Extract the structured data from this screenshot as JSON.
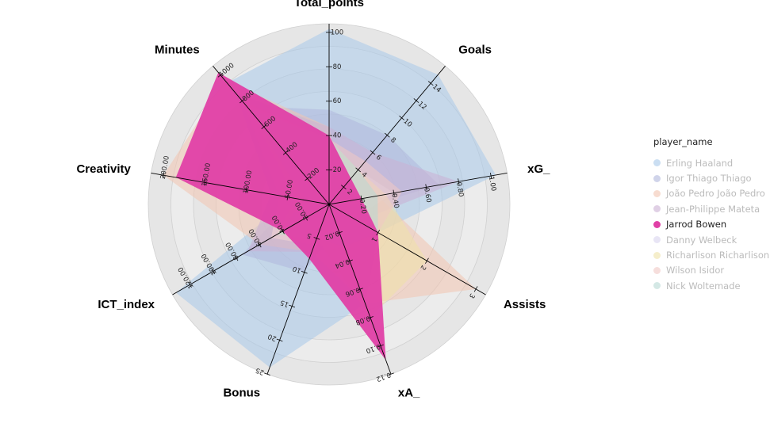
{
  "chart_data": {
    "type": "radar",
    "axes": [
      {
        "name": "Total_points",
        "max": 105,
        "ticks": [
          20,
          40,
          60,
          80,
          100
        ]
      },
      {
        "name": "Goals",
        "max": 16,
        "ticks": [
          2,
          4,
          6,
          8,
          10,
          12,
          14
        ]
      },
      {
        "name": "xG_",
        "max": 1.1,
        "ticks": [
          0.2,
          0.4,
          0.6,
          0.8,
          1.0
        ],
        "decimals": 2
      },
      {
        "name": "Assists",
        "max": 3.2,
        "ticks": [
          1,
          2,
          3
        ]
      },
      {
        "name": "xA_",
        "max": 0.12,
        "ticks": [
          0.02,
          0.04,
          0.06,
          0.08,
          0.1,
          0.12
        ],
        "decimals": 2
      },
      {
        "name": "Bonus",
        "max": 25,
        "ticks": [
          5,
          10,
          15,
          20,
          25
        ]
      },
      {
        "name": "ICT_index",
        "max": 135,
        "ticks": [
          20.0,
          40.0,
          60.0,
          80.0,
          100.0,
          120.0
        ],
        "decimals": 2
      },
      {
        "name": "Creativity",
        "max": 215,
        "ticks": [
          50.0,
          100.0,
          150.0,
          200.0
        ],
        "decimals": 2
      },
      {
        "name": "Minutes",
        "max": 1070,
        "ticks": [
          200,
          400,
          600,
          800,
          1000
        ]
      }
    ],
    "series": [
      {
        "name": "Erling Haaland",
        "color": "#a7c8ea",
        "values": [
          102,
          15,
          1.03,
          1,
          0.07,
          24,
          132,
          45,
          940
        ]
      },
      {
        "name": "Igor Thiago Thiago",
        "color": "#b0b8dc",
        "values": [
          55,
          8,
          0.68,
          0.3,
          0.015,
          10,
          75,
          40,
          760
        ]
      },
      {
        "name": "João Pedro João Pedro",
        "color": "#f2c4b0",
        "values": [
          45,
          2,
          0.3,
          3,
          0.07,
          7,
          60,
          200,
          960
        ]
      },
      {
        "name": "Jean-Philippe Mateta",
        "color": "#cbb0d4",
        "values": [
          45,
          6,
          0.8,
          0.6,
          0.03,
          7,
          70,
          70,
          860
        ]
      },
      {
        "name": "Jarrod Bowen",
        "color": "#e040a6",
        "values": [
          40,
          3,
          0.2,
          1,
          0.11,
          8,
          40,
          185,
          1020
        ]
      },
      {
        "name": "Danny Welbeck",
        "color": "#d8d4ee",
        "values": [
          38,
          4,
          0.4,
          0.5,
          0.02,
          6,
          50,
          60,
          780
        ]
      },
      {
        "name": "Richarlison Richarlison",
        "color": "#efe2a8",
        "values": [
          38,
          4,
          0.35,
          2,
          0.08,
          5,
          45,
          40,
          720
        ]
      },
      {
        "name": "Wilson Isidor",
        "color": "#f0c8c4",
        "values": [
          38,
          5,
          0.45,
          1,
          0.03,
          6,
          50,
          60,
          800
        ]
      },
      {
        "name": "Nick Woltemade",
        "color": "#b8d8d4",
        "values": [
          38,
          4,
          0.3,
          1,
          0.03,
          5,
          45,
          30,
          740
        ]
      }
    ],
    "highlighted": "Jarrod Bowen",
    "highlight_color": "#e040a6",
    "legend_title": "player_name",
    "legend_placement": "right"
  }
}
